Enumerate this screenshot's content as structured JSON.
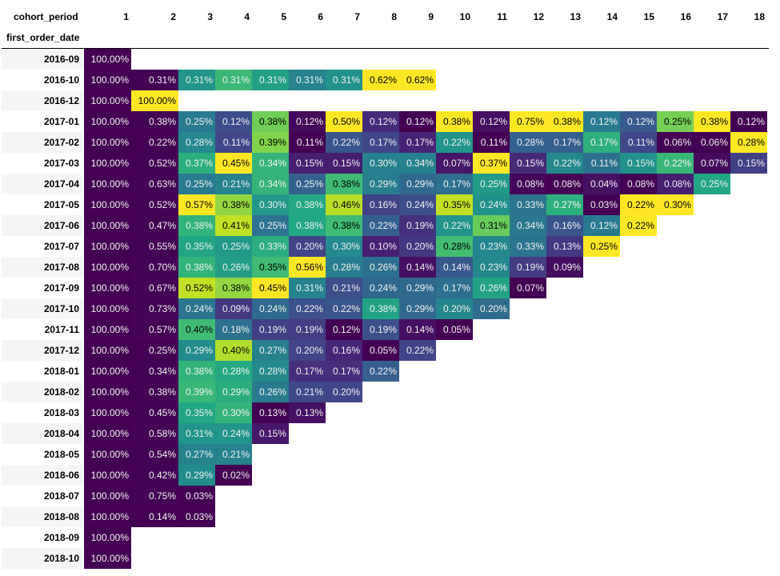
{
  "chart_data": {
    "type": "heatmap",
    "columns_header": "cohort_period",
    "rows_header": "first_order_date",
    "columns": [
      "1",
      "2",
      "3",
      "4",
      "5",
      "6",
      "7",
      "8",
      "9",
      "10",
      "11",
      "12",
      "13",
      "14",
      "15",
      "16",
      "17",
      "18"
    ],
    "rows": [
      {
        "label": "2016-09",
        "values": [
          "100.00%"
        ]
      },
      {
        "label": "2016-10",
        "values": [
          "100.00%",
          "0.31%",
          "0.31%",
          "0.31%",
          "0.31%",
          "0.31%",
          "0.31%",
          "0.62%",
          "0.62%"
        ]
      },
      {
        "label": "2016-12",
        "values": [
          "100.00%",
          "100.00%"
        ]
      },
      {
        "label": "2017-01",
        "values": [
          "100.00%",
          "0.38%",
          "0.25%",
          "0.12%",
          "0.38%",
          "0.12%",
          "0.50%",
          "0.12%",
          "0.12%",
          "0.38%",
          "0.12%",
          "0.75%",
          "0.38%",
          "0.12%",
          "0.12%",
          "0.25%",
          "0.38%",
          "0.12%"
        ]
      },
      {
        "label": "2017-02",
        "values": [
          "100.00%",
          "0.22%",
          "0.28%",
          "0.11%",
          "0.39%",
          "0.11%",
          "0.22%",
          "0.17%",
          "0.17%",
          "0.22%",
          "0.11%",
          "0.28%",
          "0.17%",
          "0.17%",
          "0.11%",
          "0.06%",
          "0.06%",
          "0.28%"
        ]
      },
      {
        "label": "2017-03",
        "values": [
          "100.00%",
          "0.52%",
          "0.37%",
          "0.45%",
          "0.34%",
          "0.15%",
          "0.15%",
          "0.30%",
          "0.34%",
          "0.07%",
          "0.37%",
          "0.15%",
          "0.22%",
          "0.11%",
          "0.15%",
          "0.22%",
          "0.07%",
          "0.15%"
        ]
      },
      {
        "label": "2017-04",
        "values": [
          "100.00%",
          "0.63%",
          "0.25%",
          "0.21%",
          "0.34%",
          "0.25%",
          "0.38%",
          "0.29%",
          "0.29%",
          "0.17%",
          "0.25%",
          "0.08%",
          "0.08%",
          "0.04%",
          "0.08%",
          "0.08%",
          "0.25%"
        ]
      },
      {
        "label": "2017-05",
        "values": [
          "100.00%",
          "0.52%",
          "0.57%",
          "0.38%",
          "0.30%",
          "0.38%",
          "0.46%",
          "0.16%",
          "0.24%",
          "0.35%",
          "0.24%",
          "0.33%",
          "0.27%",
          "0.03%",
          "0.22%",
          "0.30%"
        ]
      },
      {
        "label": "2017-06",
        "values": [
          "100.00%",
          "0.47%",
          "0.38%",
          "0.41%",
          "0.25%",
          "0.38%",
          "0.38%",
          "0.22%",
          "0.19%",
          "0.22%",
          "0.31%",
          "0.34%",
          "0.16%",
          "0.12%",
          "0.22%"
        ]
      },
      {
        "label": "2017-07",
        "values": [
          "100.00%",
          "0.55%",
          "0.35%",
          "0.25%",
          "0.33%",
          "0.20%",
          "0.30%",
          "0.10%",
          "0.20%",
          "0.28%",
          "0.23%",
          "0.33%",
          "0.13%",
          "0.25%"
        ]
      },
      {
        "label": "2017-08",
        "values": [
          "100.00%",
          "0.70%",
          "0.38%",
          "0.26%",
          "0.35%",
          "0.56%",
          "0.28%",
          "0.26%",
          "0.14%",
          "0.14%",
          "0.23%",
          "0.19%",
          "0.09%"
        ]
      },
      {
        "label": "2017-09",
        "values": [
          "100.00%",
          "0.67%",
          "0.52%",
          "0.38%",
          "0.45%",
          "0.31%",
          "0.21%",
          "0.24%",
          "0.29%",
          "0.17%",
          "0.26%",
          "0.07%"
        ]
      },
      {
        "label": "2017-10",
        "values": [
          "100.00%",
          "0.73%",
          "0.24%",
          "0.09%",
          "0.24%",
          "0.22%",
          "0.22%",
          "0.38%",
          "0.29%",
          "0.20%",
          "0.20%"
        ]
      },
      {
        "label": "2017-11",
        "values": [
          "100.00%",
          "0.57%",
          "0.40%",
          "0.18%",
          "0.19%",
          "0.19%",
          "0.12%",
          "0.19%",
          "0.14%",
          "0.05%"
        ]
      },
      {
        "label": "2017-12",
        "values": [
          "100.00%",
          "0.25%",
          "0.29%",
          "0.40%",
          "0.27%",
          "0.20%",
          "0.16%",
          "0.05%",
          "0.22%"
        ]
      },
      {
        "label": "2018-01",
        "values": [
          "100.00%",
          "0.34%",
          "0.38%",
          "0.28%",
          "0.28%",
          "0.17%",
          "0.17%",
          "0.22%"
        ]
      },
      {
        "label": "2018-02",
        "values": [
          "100.00%",
          "0.38%",
          "0.39%",
          "0.29%",
          "0.26%",
          "0.21%",
          "0.20%"
        ]
      },
      {
        "label": "2018-03",
        "values": [
          "100.00%",
          "0.45%",
          "0.35%",
          "0.30%",
          "0.13%",
          "0.13%"
        ]
      },
      {
        "label": "2018-04",
        "values": [
          "100.00%",
          "0.58%",
          "0.31%",
          "0.24%",
          "0.15%"
        ]
      },
      {
        "label": "2018-05",
        "values": [
          "100.00%",
          "0.54%",
          "0.27%",
          "0.21%"
        ]
      },
      {
        "label": "2018-06",
        "values": [
          "100.00%",
          "0.42%",
          "0.29%",
          "0.02%"
        ]
      },
      {
        "label": "2018-07",
        "values": [
          "100.00%",
          "0.75%",
          "0.03%"
        ]
      },
      {
        "label": "2018-08",
        "values": [
          "100.00%",
          "0.14%",
          "0.03%"
        ]
      },
      {
        "label": "2018-09",
        "values": [
          "100.00%"
        ]
      },
      {
        "label": "2018-10",
        "values": [
          "100.00%"
        ]
      }
    ],
    "colormap": "viridis",
    "color_scale": "per-column",
    "legend": "none"
  }
}
